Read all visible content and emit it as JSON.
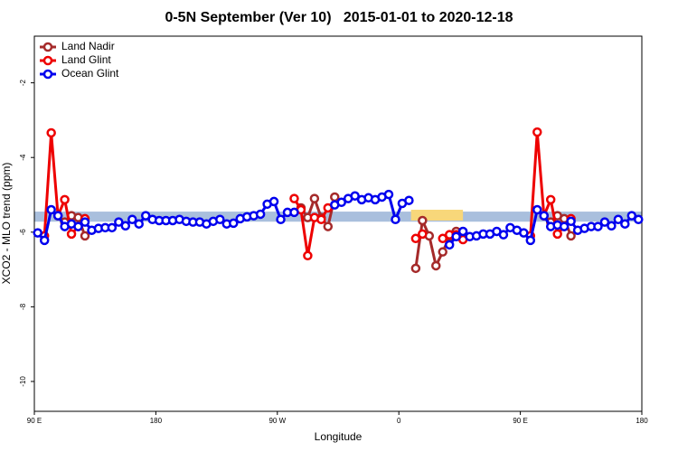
{
  "chart_data": {
    "type": "line",
    "title": "0-5N September (Ver 10)   2015-01-01 to 2020-12-18",
    "x_label": "Longitude",
    "y_label": "XCO2 - MLO trend (ppm)",
    "xlim": [
      90,
      540
    ],
    "ylim": [
      -10.8,
      -0.75
    ],
    "xticks": [
      {
        "value": 90,
        "label": "90 E"
      },
      {
        "value": 180,
        "label": "180"
      },
      {
        "value": 270,
        "label": "90 W"
      },
      {
        "value": 360,
        "label": "0"
      },
      {
        "value": 450,
        "label": "90 E"
      },
      {
        "value": 540,
        "label": "180"
      }
    ],
    "yticks": [
      -10,
      -8,
      -6,
      -4,
      -2
    ],
    "legend_position": "top-left",
    "bands": [
      {
        "ylim": [
          -5.45,
          -5.72
        ],
        "color": "#a9bfdd"
      },
      {
        "xlim": [
          369,
          407.5
        ],
        "ylim": [
          -5.4,
          -5.69
        ],
        "color": "#f8d77a"
      }
    ],
    "series": [
      {
        "name": "Land Nadir",
        "color": "#a52a2a",
        "x": [
          107.5,
          112.5,
          117.5,
          122.5,
          127.5,
          132.5,
          287.5,
          292.5,
          297.5,
          302.5,
          307.5,
          312.5,
          317.5,
          372.5,
          377.5,
          382.5,
          387.5,
          392.5,
          397.5,
          402.5,
          407.5,
          412.5,
          467.5,
          472.5,
          477.5,
          482.5,
          487.5
        ],
        "values": [
          -5.56,
          -5.73,
          -5.56,
          -5.61,
          -6.1,
          null,
          -5.35,
          -5.61,
          -5.1,
          -5.61,
          -5.85,
          -5.06,
          null,
          -6.97,
          -5.69,
          -6.1,
          -6.9,
          -6.53,
          -6.12,
          -5.98,
          -6.15,
          null,
          -5.56,
          -5.73,
          -5.56,
          -5.64,
          -6.1
        ]
      },
      {
        "name": "Land Glint",
        "color": "#ee0000",
        "x": [
          97.5,
          102.5,
          107.5,
          112.5,
          117.5,
          122.5,
          127.5,
          132.5,
          282.5,
          287.5,
          292.5,
          297.5,
          302.5,
          307.5,
          312.5,
          372.5,
          377.5,
          382.5,
          392.5,
          397.5,
          402.5,
          407.5,
          412.5,
          457.5,
          462.5,
          467.5,
          472.5,
          477.5,
          482.5,
          487.5
        ],
        "values": [
          -6.1,
          -3.34,
          -5.56,
          -5.13,
          -6.05,
          -5.85,
          -5.64,
          null,
          -5.1,
          -5.4,
          -6.63,
          -5.61,
          -5.66,
          -5.35,
          null,
          -6.17,
          -6.05,
          null,
          -6.17,
          -6.07,
          -6.07,
          -6.2,
          null,
          -6.1,
          -3.32,
          -5.56,
          -5.13,
          -6.05,
          -5.85,
          -5.64
        ]
      },
      {
        "name": "Ocean Glint",
        "color": "#0000ee",
        "x": [
          92.5,
          97.5,
          102.5,
          107.5,
          112.5,
          117.5,
          122.5,
          127.5,
          132.5,
          137.5,
          142.5,
          147.5,
          152.5,
          157.5,
          162.5,
          167.5,
          172.5,
          177.5,
          182.5,
          187.5,
          192.5,
          197.5,
          202.5,
          207.5,
          212.5,
          217.5,
          222.5,
          227.5,
          232.5,
          237.5,
          242.5,
          247.5,
          252.5,
          257.5,
          262.5,
          267.5,
          272.5,
          277.5,
          282.5,
          287.5,
          312.5,
          317.5,
          322.5,
          327.5,
          332.5,
          337.5,
          342.5,
          347.5,
          352.5,
          357.5,
          362.5,
          367.5,
          372.5,
          397.5,
          402.5,
          407.5,
          412.5,
          417.5,
          422.5,
          427.5,
          432.5,
          437.5,
          442.5,
          447.5,
          452.5,
          457.5,
          462.5,
          467.5,
          472.5,
          477.5,
          482.5,
          487.5,
          492.5,
          497.5,
          502.5,
          507.5,
          512.5,
          517.5,
          522.5,
          527.5,
          532.5,
          537.5
        ],
        "values": [
          -6.02,
          -6.22,
          -5.4,
          -5.56,
          -5.85,
          -5.78,
          -5.85,
          -5.73,
          -5.95,
          -5.9,
          -5.88,
          -5.88,
          -5.73,
          -5.83,
          -5.66,
          -5.78,
          -5.56,
          -5.66,
          -5.69,
          -5.69,
          -5.69,
          -5.66,
          -5.71,
          -5.73,
          -5.73,
          -5.78,
          -5.71,
          -5.66,
          -5.78,
          -5.76,
          -5.64,
          -5.59,
          -5.56,
          -5.52,
          -5.25,
          -5.18,
          -5.66,
          -5.47,
          -5.47,
          null,
          -5.27,
          -5.2,
          -5.1,
          -5.03,
          -5.13,
          -5.08,
          -5.13,
          -5.06,
          -4.99,
          -5.66,
          -5.23,
          -5.15,
          null,
          -6.34,
          -6.12,
          -5.98,
          -6.12,
          -6.1,
          -6.05,
          -6.05,
          -5.98,
          -6.07,
          -5.88,
          -5.95,
          -6.02,
          -6.22,
          -5.4,
          -5.56,
          -5.85,
          -5.81,
          -5.85,
          -5.71,
          -5.95,
          -5.9,
          -5.85,
          -5.85,
          -5.73,
          -5.83,
          -5.66,
          -5.78,
          -5.56,
          -5.66
        ]
      }
    ]
  }
}
